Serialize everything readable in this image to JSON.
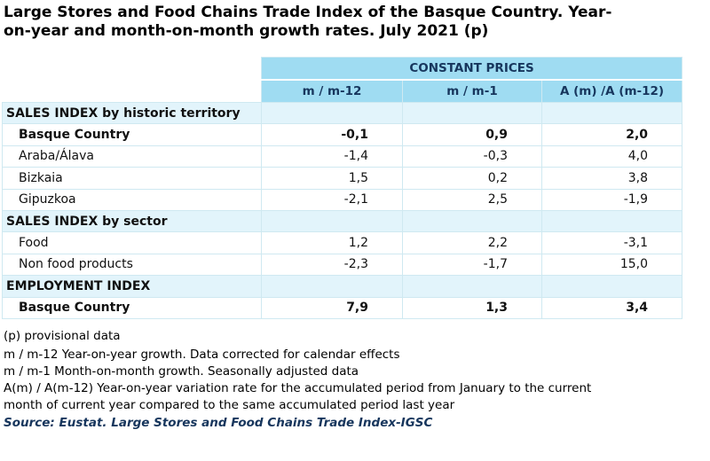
{
  "title": {
    "line1": "Large Stores and Food Chains Trade Index of the Basque Country. Year-",
    "line2": "on-year and month-on-month growth rates. July 2021 (p)"
  },
  "table": {
    "group_header": "CONSTANT PRICES",
    "columns": [
      "m / m-12",
      "m / m-1",
      "A (m) /A (m-12)"
    ],
    "sections": [
      {
        "title": "SALES INDEX by historic territory",
        "rows": [
          {
            "label": "Basque Country",
            "values": [
              "-0,1",
              "0,9",
              "2,0"
            ]
          },
          {
            "label": "Araba/Álava",
            "values": [
              "-1,4",
              "-0,3",
              "4,0"
            ]
          },
          {
            "label": "Bizkaia",
            "values": [
              "1,5",
              "0,2",
              "3,8"
            ]
          },
          {
            "label": "Gipuzkoa",
            "values": [
              "-2,1",
              "2,5",
              "-1,9"
            ]
          }
        ]
      },
      {
        "title": "SALES INDEX by sector",
        "rows": [
          {
            "label": "Food",
            "values": [
              "1,2",
              "2,2",
              "-3,1"
            ]
          },
          {
            "label": "Non food products",
            "values": [
              "-2,3",
              "-1,7",
              "15,0"
            ]
          }
        ]
      },
      {
        "title": "EMPLOYMENT INDEX",
        "rows": [
          {
            "label": "Basque Country",
            "values": [
              "7,9",
              "1,3",
              "3,4"
            ]
          }
        ]
      }
    ]
  },
  "notes": {
    "provisional": "(p) provisional data",
    "n1": "m / m-12 Year-on-year growth. Data corrected for calendar effects",
    "n2": "m / m-1 Month-on-month growth. Seasonally adjusted data",
    "n3a": "A(m) / A(m-12) Year-on-year variation rate for the accumulated period from January to the current",
    "n3b": "month of current year compared to the same accumulated period last year",
    "source": "Source: Eustat. Large Stores and Food Chains Trade Index-IGSC"
  }
}
